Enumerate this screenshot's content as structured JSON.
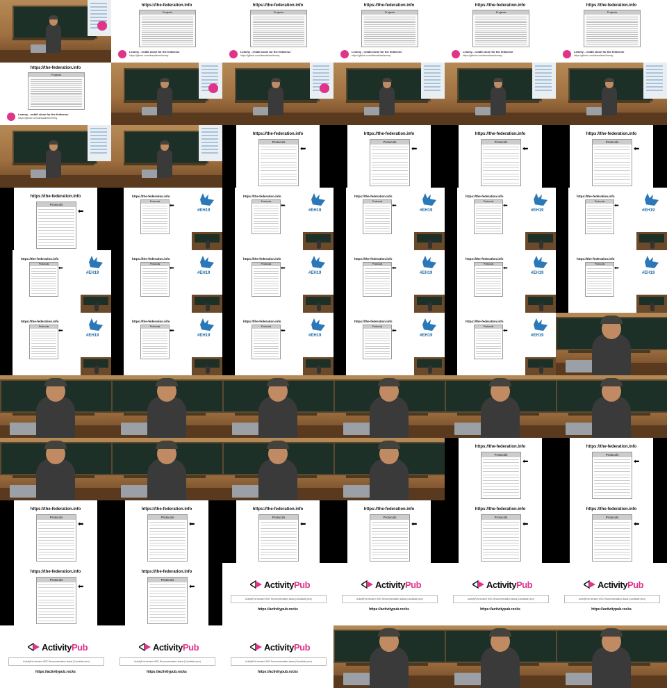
{
  "tiles": [
    {
      "row": 0,
      "col": 0,
      "type": "camera",
      "logo": true
    },
    {
      "row": 0,
      "col": 1,
      "type": "slide-table"
    },
    {
      "row": 0,
      "col": 2,
      "type": "slide-table"
    },
    {
      "row": 0,
      "col": 3,
      "type": "slide-table"
    },
    {
      "row": 0,
      "col": 4,
      "type": "slide-table"
    },
    {
      "row": 0,
      "col": 5,
      "type": "slide-table"
    },
    {
      "row": 1,
      "col": 0,
      "type": "slide-table"
    },
    {
      "row": 1,
      "col": 1,
      "type": "camera",
      "logo": true
    },
    {
      "row": 1,
      "col": 2,
      "type": "camera",
      "logo": true
    },
    {
      "row": 1,
      "col": 3,
      "type": "camera"
    },
    {
      "row": 1,
      "col": 4,
      "type": "camera"
    },
    {
      "row": 1,
      "col": 5,
      "type": "camera"
    },
    {
      "row": 2,
      "col": 0,
      "type": "camera"
    },
    {
      "row": 2,
      "col": 1,
      "type": "camera"
    },
    {
      "row": 2,
      "col": 2,
      "type": "protocols"
    },
    {
      "row": 2,
      "col": 3,
      "type": "protocols"
    },
    {
      "row": 2,
      "col": 4,
      "type": "protocols"
    },
    {
      "row": 2,
      "col": 5,
      "type": "protocols"
    },
    {
      "row": 3,
      "col": 0,
      "type": "protocols"
    },
    {
      "row": 3,
      "col": 1,
      "type": "eh19"
    },
    {
      "row": 3,
      "col": 2,
      "type": "eh19"
    },
    {
      "row": 3,
      "col": 3,
      "type": "eh19"
    },
    {
      "row": 3,
      "col": 4,
      "type": "eh19"
    },
    {
      "row": 3,
      "col": 5,
      "type": "eh19"
    },
    {
      "row": 4,
      "col": 0,
      "type": "eh19"
    },
    {
      "row": 4,
      "col": 1,
      "type": "eh19"
    },
    {
      "row": 4,
      "col": 2,
      "type": "eh19"
    },
    {
      "row": 4,
      "col": 3,
      "type": "eh19"
    },
    {
      "row": 4,
      "col": 4,
      "type": "eh19"
    },
    {
      "row": 4,
      "col": 5,
      "type": "eh19"
    },
    {
      "row": 5,
      "col": 0,
      "type": "eh19"
    },
    {
      "row": 5,
      "col": 1,
      "type": "eh19"
    },
    {
      "row": 5,
      "col": 2,
      "type": "eh19"
    },
    {
      "row": 5,
      "col": 3,
      "type": "eh19"
    },
    {
      "row": 5,
      "col": 4,
      "type": "eh19"
    },
    {
      "row": 5,
      "col": 5,
      "type": "closeup"
    },
    {
      "row": 6,
      "col": 0,
      "type": "closeup"
    },
    {
      "row": 6,
      "col": 1,
      "type": "closeup"
    },
    {
      "row": 6,
      "col": 2,
      "type": "closeup"
    },
    {
      "row": 6,
      "col": 3,
      "type": "closeup"
    },
    {
      "row": 6,
      "col": 4,
      "type": "closeup"
    },
    {
      "row": 6,
      "col": 5,
      "type": "closeup"
    },
    {
      "row": 7,
      "col": 0,
      "type": "closeup"
    },
    {
      "row": 7,
      "col": 1,
      "type": "closeup"
    },
    {
      "row": 7,
      "col": 2,
      "type": "closeup"
    },
    {
      "row": 7,
      "col": 3,
      "type": "closeup"
    },
    {
      "row": 7,
      "col": 4,
      "type": "protocols"
    },
    {
      "row": 7,
      "col": 5,
      "type": "protocols"
    },
    {
      "row": 8,
      "col": 0,
      "type": "protocols"
    },
    {
      "row": 8,
      "col": 1,
      "type": "protocols"
    },
    {
      "row": 8,
      "col": 2,
      "type": "protocols"
    },
    {
      "row": 8,
      "col": 3,
      "type": "protocols"
    },
    {
      "row": 8,
      "col": 4,
      "type": "protocols"
    },
    {
      "row": 8,
      "col": 5,
      "type": "protocols"
    },
    {
      "row": 9,
      "col": 0,
      "type": "protocols"
    },
    {
      "row": 9,
      "col": 1,
      "type": "protocols"
    },
    {
      "row": 9,
      "col": 2,
      "type": "activitypub"
    },
    {
      "row": 9,
      "col": 3,
      "type": "activitypub"
    },
    {
      "row": 9,
      "col": 4,
      "type": "activitypub"
    },
    {
      "row": 9,
      "col": 5,
      "type": "activitypub"
    },
    {
      "row": 10,
      "col": 0,
      "type": "activitypub"
    },
    {
      "row": 10,
      "col": 1,
      "type": "activitypub"
    },
    {
      "row": 10,
      "col": 2,
      "type": "activitypub"
    },
    {
      "row": 10,
      "col": 3,
      "type": "closeup"
    },
    {
      "row": 10,
      "col": 4,
      "type": "closeup"
    },
    {
      "row": 10,
      "col": 5,
      "type": "closeup"
    }
  ],
  "text": {
    "url": "https://the-federation.info",
    "projects_header": "Projects",
    "protocols_header": "Protocols",
    "lemmy_title": "Lemmy - reddit clone for the fediverse",
    "lemmy_url": "https://github.com/dessalines/lemmy",
    "eh19_tag": "#EH19",
    "ap_name_a": "Activity",
    "ap_name_p": "Pub",
    "ap_box": "ActivityPub became W3C Recommendation status (Candidate prior)",
    "ap_link": "https://activitypub.rocks"
  },
  "colors": {
    "accent": "#e0338a",
    "eh_blue": "#2a78b8",
    "board": "#1d3027"
  }
}
